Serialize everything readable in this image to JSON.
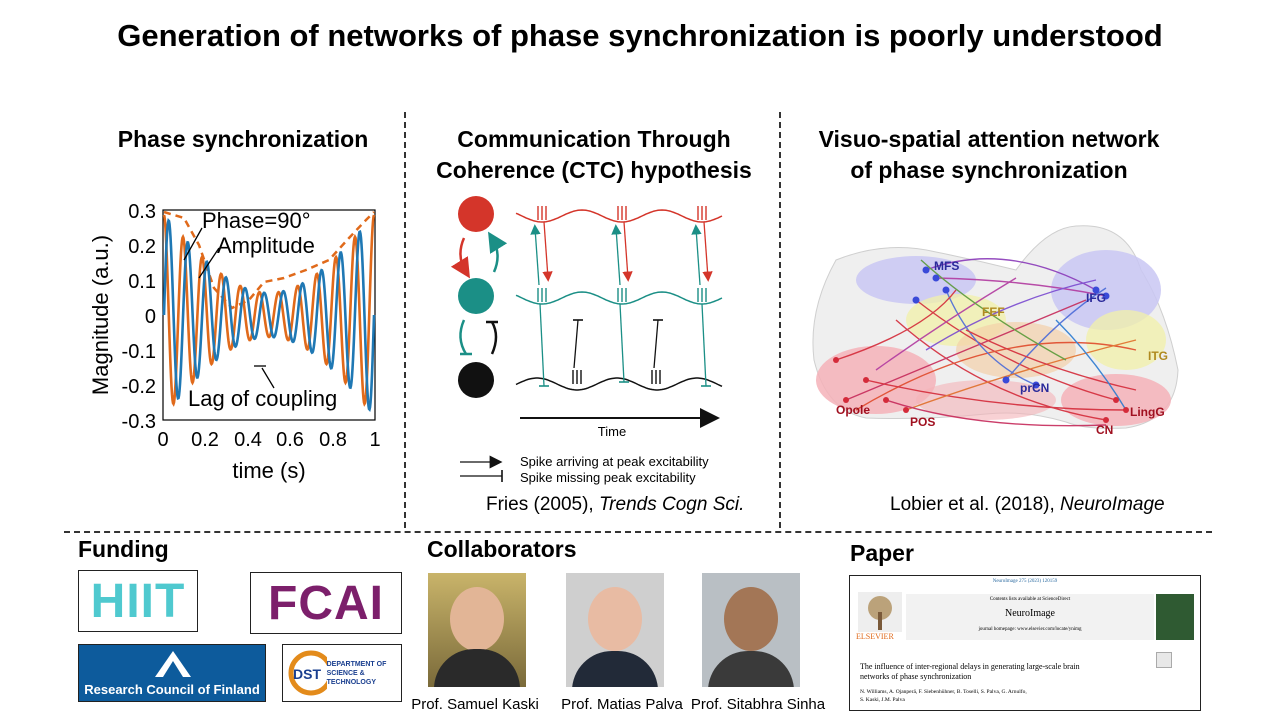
{
  "slide_title": "Generation of networks of phase synchronization is poorly understood",
  "panels": {
    "phase": {
      "title": "Phase synchronization",
      "y_ticks": [
        "0.3",
        "0.2",
        "0.1",
        "0",
        "-0.1",
        "-0.2",
        "-0.3"
      ],
      "x_ticks": [
        "0",
        "0.2",
        "0.4",
        "0.6",
        "0.8",
        "1"
      ],
      "ylabel": "Magnitude (a.u.)",
      "xlabel": "time (s)",
      "ann_phase": "Phase=90°",
      "ann_amplitude": "Amplitude",
      "ann_lag": "Lag of coupling",
      "colors": {
        "blue": "#1f78b4",
        "orange": "#e06a1b"
      }
    },
    "ctc": {
      "title_line1": "Communication Through",
      "title_line2": "Coherence (CTC) hypothesis",
      "time_label": "Time",
      "legend_arrive": "Spike arriving at peak excitability",
      "legend_miss": "Spike missing peak excitability",
      "citation_plain": "Fries (2005), ",
      "citation_italic": "Trends Cogn Sci.",
      "colors": {
        "red": "#d4352a",
        "teal": "#1b8f86",
        "black": "#111111"
      }
    },
    "attention": {
      "title_line1": "Visuo-spatial attention network",
      "title_line2": "of phase synchronization",
      "regions": [
        "MFS",
        "IFG",
        "FEF",
        "ITG",
        "prCN",
        "Opole",
        "POS",
        "LingG",
        "CN"
      ],
      "citation_plain": "Lobier et al. (2018), ",
      "citation_italic": "NeuroImage"
    }
  },
  "funding": {
    "header": "Funding",
    "hiit": "HIIT",
    "fcai": "FCAI",
    "rcf": "Research Council of Finland",
    "dst_line1": "DEPARTMENT OF",
    "dst_line2": "SCIENCE & TECHNOLOGY",
    "dst_abbr": "DST"
  },
  "collaborators": {
    "header": "Collaborators",
    "people": [
      "Prof. Samuel Kaski",
      "Prof. Matias Palva",
      "Prof. Sitabhra Sinha"
    ]
  },
  "paper": {
    "header": "Paper",
    "journal_ref": "NeuroImage 275 (2023) 120159",
    "contents_line": "Contents lists available at ScienceDirect",
    "journal": "NeuroImage",
    "homepage": "journal homepage: www.elsevier.com/locate/ynimg",
    "publisher": "ELSEVIER",
    "title_line1": "The influence of inter-regional delays in generating large-scale brain",
    "title_line2": "networks of phase synchronization",
    "authors_line1": "N. Williams, A. Ojanperä, F. Siebenhühner, B. Toselli, S. Palva, G. Arnulfo,",
    "authors_line2": "S. Kaski, J.M. Palva"
  }
}
